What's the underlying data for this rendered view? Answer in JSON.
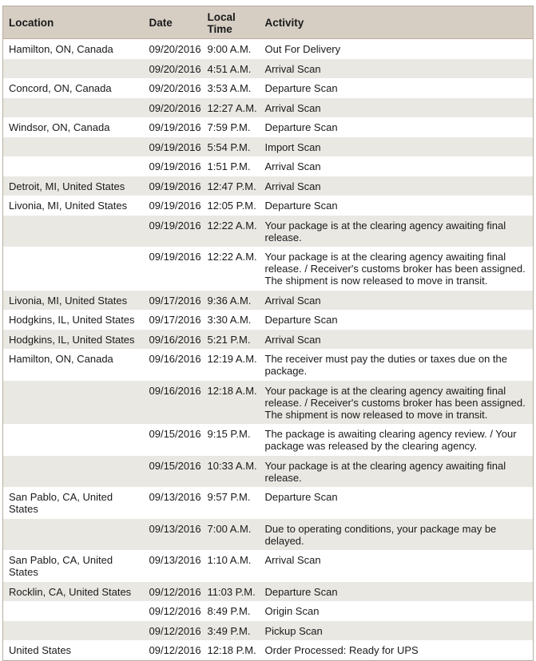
{
  "headers": {
    "location": "Location",
    "date": "Date",
    "time": "Local Time",
    "activity": "Activity"
  },
  "colors": {
    "header_bg": "#d6cec3",
    "alt_row_bg": "#eae8e3",
    "border": "#b9ae9f"
  },
  "rows": [
    {
      "location": "Hamilton, ON, Canada",
      "date": "09/20/2016",
      "time": "9:00 A.M.",
      "activity": "Out For Delivery"
    },
    {
      "location": "",
      "date": "09/20/2016",
      "time": "4:51 A.M.",
      "activity": "Arrival Scan"
    },
    {
      "location": "Concord, ON, Canada",
      "date": "09/20/2016",
      "time": "3:53 A.M.",
      "activity": "Departure Scan"
    },
    {
      "location": "",
      "date": "09/20/2016",
      "time": "12:27 A.M.",
      "activity": "Arrival Scan"
    },
    {
      "location": "Windsor, ON, Canada",
      "date": "09/19/2016",
      "time": "7:59 P.M.",
      "activity": "Departure Scan"
    },
    {
      "location": "",
      "date": "09/19/2016",
      "time": "5:54 P.M.",
      "activity": "Import Scan"
    },
    {
      "location": "",
      "date": "09/19/2016",
      "time": "1:51 P.M.",
      "activity": "Arrival Scan"
    },
    {
      "location": "Detroit, MI, United States",
      "date": "09/19/2016",
      "time": "12:47 P.M.",
      "activity": "Arrival Scan"
    },
    {
      "location": "Livonia, MI, United States",
      "date": "09/19/2016",
      "time": "12:05 P.M.",
      "activity": "Departure Scan"
    },
    {
      "location": "",
      "date": "09/19/2016",
      "time": "12:22 A.M.",
      "activity": "Your package is at the clearing agency awaiting final release."
    },
    {
      "location": "",
      "date": "09/19/2016",
      "time": "12:22 A.M.",
      "activity": "Your package is at the clearing agency awaiting final release. / Receiver's customs broker has been assigned. The shipment is now released to move in transit."
    },
    {
      "location": "Livonia, MI, United States",
      "date": "09/17/2016",
      "time": "9:36 A.M.",
      "activity": "Arrival Scan"
    },
    {
      "location": "Hodgkins, IL, United States",
      "date": "09/17/2016",
      "time": "3:30 A.M.",
      "activity": "Departure Scan"
    },
    {
      "location": "Hodgkins, IL, United States",
      "date": "09/16/2016",
      "time": "5:21 P.M.",
      "activity": "Arrival Scan"
    },
    {
      "location": "Hamilton, ON, Canada",
      "date": "09/16/2016",
      "time": "12:19 A.M.",
      "activity": "The receiver must pay the duties or taxes due on the package."
    },
    {
      "location": "",
      "date": "09/16/2016",
      "time": "12:18 A.M.",
      "activity": "Your package is at the clearing agency awaiting final release. / Receiver's customs broker has been assigned. The shipment is now released to move in transit."
    },
    {
      "location": "",
      "date": "09/15/2016",
      "time": "9:15 P.M.",
      "activity": "The package is awaiting clearing agency review. / Your package was released by the clearing agency."
    },
    {
      "location": "",
      "date": "09/15/2016",
      "time": "10:33 A.M.",
      "activity": "Your package is at the clearing agency awaiting final release."
    },
    {
      "location": "San Pablo, CA, United States",
      "date": "09/13/2016",
      "time": "9:57 P.M.",
      "activity": "Departure Scan"
    },
    {
      "location": "",
      "date": "09/13/2016",
      "time": "7:00 A.M.",
      "activity": "Due to operating conditions, your package may be delayed."
    },
    {
      "location": "San Pablo, CA, United States",
      "date": "09/13/2016",
      "time": "1:10 A.M.",
      "activity": "Arrival Scan"
    },
    {
      "location": "Rocklin, CA, United States",
      "date": "09/12/2016",
      "time": "11:03 P.M.",
      "activity": "Departure Scan"
    },
    {
      "location": "",
      "date": "09/12/2016",
      "time": "8:49 P.M.",
      "activity": "Origin Scan"
    },
    {
      "location": "",
      "date": "09/12/2016",
      "time": "3:49 P.M.",
      "activity": "Pickup Scan"
    },
    {
      "location": "United States",
      "date": "09/12/2016",
      "time": "12:18 P.M.",
      "activity": "Order Processed: Ready for UPS"
    }
  ]
}
